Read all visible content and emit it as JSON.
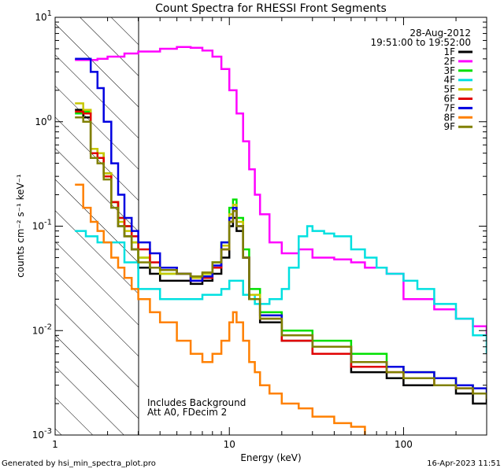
{
  "chart_data": {
    "type": "line",
    "title": "Count Spectra for RHESSI Front Segments",
    "xlabel": "Energy (keV)",
    "ylabel": "counts cm⁻² s⁻¹ keV⁻¹",
    "xscale": "log",
    "yscale": "log",
    "xlim": [
      1,
      300
    ],
    "ylim": [
      0.001,
      10
    ],
    "xticks": [
      1,
      10,
      100
    ],
    "yticks": [
      0.001,
      0.01,
      0.1,
      1,
      10
    ],
    "date": "28-Aug-2012",
    "time_range": "19:51:00 to 19:52:00",
    "legend_position": "top-right",
    "annotations": [
      "Includes Background",
      "Att A0, FDecim 2"
    ],
    "background_cutoff_keV": 3,
    "series": [
      {
        "name": "1F",
        "color": "#000000",
        "x": [
          1.3,
          1.45,
          1.6,
          1.75,
          1.9,
          2.1,
          2.3,
          2.5,
          2.75,
          3.0,
          3.5,
          4,
          5,
          6,
          7,
          8,
          9,
          10,
          10.5,
          11,
          12,
          13,
          15,
          20,
          30,
          50,
          80,
          100,
          150,
          200,
          250,
          300
        ],
        "y": [
          1.3,
          1.1,
          0.5,
          0.5,
          0.32,
          0.17,
          0.1,
          0.08,
          0.06,
          0.04,
          0.035,
          0.03,
          0.03,
          0.028,
          0.03,
          0.035,
          0.05,
          0.1,
          0.12,
          0.09,
          0.05,
          0.02,
          0.012,
          0.008,
          0.006,
          0.004,
          0.0035,
          0.003,
          0.003,
          0.0025,
          0.002,
          0.0025
        ]
      },
      {
        "name": "2F",
        "color": "#ff00ff",
        "x": [
          1.3,
          1.5,
          1.75,
          2,
          2.5,
          3,
          4,
          5,
          6,
          7,
          8,
          9,
          10,
          11,
          12,
          13,
          14,
          15,
          17,
          20,
          25,
          30,
          40,
          50,
          60,
          80,
          100,
          150,
          200,
          250,
          300
        ],
        "y": [
          3.9,
          3.9,
          4.0,
          4.2,
          4.5,
          4.7,
          5.0,
          5.2,
          5.1,
          4.8,
          4.2,
          3.2,
          2.0,
          1.2,
          0.65,
          0.35,
          0.2,
          0.13,
          0.07,
          0.055,
          0.06,
          0.05,
          0.048,
          0.045,
          0.04,
          0.035,
          0.02,
          0.016,
          0.013,
          0.011,
          0.009
        ]
      },
      {
        "name": "3F",
        "color": "#00e000",
        "x": [
          1.3,
          1.45,
          1.6,
          1.75,
          1.9,
          2.1,
          2.3,
          2.5,
          2.75,
          3.0,
          3.5,
          4,
          5,
          6,
          7,
          8,
          9,
          10,
          10.5,
          11,
          12,
          13,
          15,
          20,
          30,
          50,
          80,
          100,
          150,
          200,
          250,
          300
        ],
        "y": [
          1.2,
          1.25,
          0.55,
          0.5,
          0.3,
          0.17,
          0.12,
          0.1,
          0.07,
          0.05,
          0.04,
          0.035,
          0.035,
          0.032,
          0.035,
          0.045,
          0.07,
          0.15,
          0.18,
          0.12,
          0.06,
          0.025,
          0.015,
          0.01,
          0.008,
          0.006,
          0.0045,
          0.004,
          0.0035,
          0.003,
          0.0025,
          0.0025
        ]
      },
      {
        "name": "4F",
        "color": "#00e0e0",
        "x": [
          1.3,
          1.5,
          1.75,
          2,
          2.5,
          3,
          4,
          5,
          7,
          9,
          10,
          11,
          12,
          14,
          17,
          20,
          22,
          25,
          28,
          30,
          35,
          40,
          50,
          60,
          70,
          80,
          100,
          120,
          150,
          200,
          250,
          300
        ],
        "y": [
          0.09,
          0.08,
          0.07,
          0.07,
          0.045,
          0.025,
          0.02,
          0.02,
          0.022,
          0.025,
          0.03,
          0.03,
          0.022,
          0.018,
          0.02,
          0.025,
          0.04,
          0.08,
          0.1,
          0.09,
          0.085,
          0.08,
          0.06,
          0.05,
          0.04,
          0.035,
          0.03,
          0.025,
          0.018,
          0.013,
          0.009,
          0.006
        ]
      },
      {
        "name": "5F",
        "color": "#c8c800",
        "x": [
          1.3,
          1.45,
          1.6,
          1.75,
          1.9,
          2.1,
          2.3,
          2.5,
          2.75,
          3.0,
          3.5,
          4,
          5,
          6,
          7,
          8,
          9,
          10,
          10.5,
          11,
          12,
          13,
          15,
          20,
          30,
          50,
          80,
          100,
          150,
          200,
          250,
          300
        ],
        "y": [
          1.5,
          1.3,
          0.55,
          0.5,
          0.32,
          0.17,
          0.11,
          0.09,
          0.07,
          0.05,
          0.04,
          0.035,
          0.035,
          0.032,
          0.035,
          0.045,
          0.065,
          0.13,
          0.16,
          0.11,
          0.05,
          0.022,
          0.014,
          0.009,
          0.007,
          0.005,
          0.0045,
          0.004,
          0.0035,
          0.003,
          0.0025,
          0.0025
        ]
      },
      {
        "name": "6F",
        "color": "#e00000",
        "x": [
          1.3,
          1.45,
          1.6,
          1.75,
          1.9,
          2.1,
          2.3,
          2.5,
          2.75,
          3.0,
          3.5,
          4,
          5,
          6,
          7,
          8,
          9,
          10,
          10.5,
          11,
          12,
          13,
          15,
          20,
          30,
          50,
          80,
          100,
          150,
          200,
          250,
          300
        ],
        "y": [
          1.25,
          1.2,
          0.5,
          0.45,
          0.3,
          0.17,
          0.12,
          0.1,
          0.08,
          0.06,
          0.045,
          0.04,
          0.035,
          0.03,
          0.032,
          0.04,
          0.06,
          0.11,
          0.14,
          0.1,
          0.05,
          0.02,
          0.013,
          0.008,
          0.006,
          0.0045,
          0.004,
          0.0035,
          0.003,
          0.0028,
          0.0025,
          0.0025
        ]
      },
      {
        "name": "7F",
        "color": "#0000e0",
        "x": [
          1.3,
          1.45,
          1.6,
          1.75,
          1.9,
          2.1,
          2.3,
          2.5,
          2.75,
          3.0,
          3.5,
          4,
          5,
          6,
          7,
          8,
          9,
          10,
          10.5,
          11,
          12,
          13,
          15,
          20,
          30,
          50,
          80,
          100,
          150,
          200,
          250,
          300
        ],
        "y": [
          4.0,
          4.0,
          3.0,
          2.1,
          1.0,
          0.4,
          0.2,
          0.12,
          0.09,
          0.07,
          0.055,
          0.04,
          0.035,
          0.03,
          0.033,
          0.042,
          0.07,
          0.12,
          0.15,
          0.1,
          0.05,
          0.02,
          0.014,
          0.009,
          0.007,
          0.005,
          0.0045,
          0.004,
          0.0035,
          0.003,
          0.0028,
          0.0025
        ]
      },
      {
        "name": "8F",
        "color": "#ff8000",
        "x": [
          1.3,
          1.45,
          1.6,
          1.75,
          1.9,
          2.1,
          2.3,
          2.5,
          2.75,
          3.0,
          3.5,
          4,
          5,
          6,
          7,
          8,
          9,
          10,
          10.5,
          11,
          12,
          13,
          14,
          15,
          17,
          20,
          25,
          30,
          40,
          50,
          60
        ],
        "y": [
          0.25,
          0.15,
          0.11,
          0.09,
          0.07,
          0.05,
          0.04,
          0.032,
          0.025,
          0.02,
          0.015,
          0.012,
          0.008,
          0.006,
          0.005,
          0.006,
          0.008,
          0.012,
          0.015,
          0.012,
          0.008,
          0.005,
          0.004,
          0.003,
          0.0025,
          0.002,
          0.0018,
          0.0015,
          0.0013,
          0.0012,
          0.001
        ]
      },
      {
        "name": "9F",
        "color": "#808000",
        "x": [
          1.3,
          1.45,
          1.6,
          1.75,
          1.9,
          2.1,
          2.3,
          2.5,
          2.75,
          3.0,
          3.5,
          4,
          5,
          6,
          7,
          8,
          9,
          10,
          10.5,
          11,
          12,
          13,
          15,
          20,
          30,
          50,
          80,
          100,
          150,
          200,
          250,
          300
        ],
        "y": [
          1.1,
          1.0,
          0.45,
          0.4,
          0.28,
          0.15,
          0.1,
          0.08,
          0.06,
          0.045,
          0.04,
          0.038,
          0.035,
          0.033,
          0.036,
          0.045,
          0.06,
          0.11,
          0.14,
          0.1,
          0.05,
          0.02,
          0.013,
          0.009,
          0.007,
          0.005,
          0.004,
          0.0035,
          0.003,
          0.0028,
          0.0025,
          0.0022
        ]
      }
    ]
  },
  "footer": {
    "generated_by": "Generated by hsi_min_spectra_plot.pro",
    "timestamp": "16-Apr-2023 11:51"
  }
}
